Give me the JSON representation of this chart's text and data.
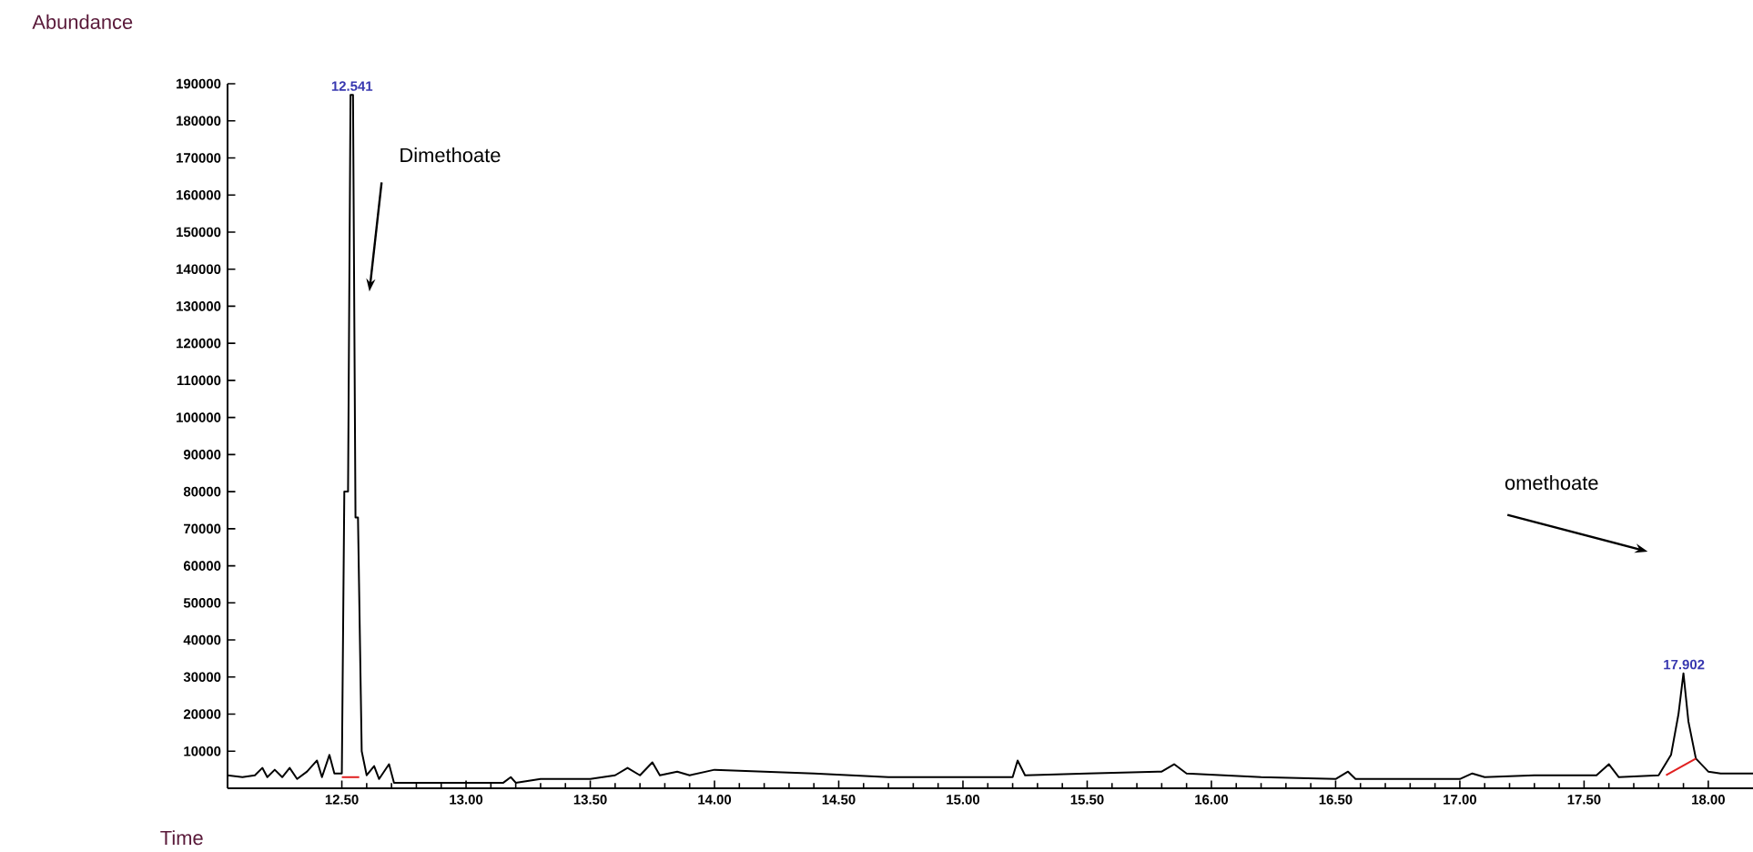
{
  "chart_data": {
    "type": "line",
    "xlabel": "Time",
    "ylabel": "Abundance",
    "marker": "none",
    "xlim": [
      12.04,
      18.18
    ],
    "ylim": [
      0,
      190000
    ],
    "xticks": [
      {
        "value": 12.5,
        "label": "12.50"
      },
      {
        "value": 13,
        "label": "13.00"
      },
      {
        "value": 13.5,
        "label": "13.50"
      },
      {
        "value": 14,
        "label": "14.00"
      },
      {
        "value": 14.5,
        "label": "14.50"
      },
      {
        "value": 15,
        "label": "15.00"
      },
      {
        "value": 15.5,
        "label": "15.50"
      },
      {
        "value": 16,
        "label": "16.00"
      },
      {
        "value": 16.5,
        "label": "16.50"
      },
      {
        "value": 17,
        "label": "17.00"
      },
      {
        "value": 17.5,
        "label": "17.50"
      },
      {
        "value": 18,
        "label": "18.00"
      }
    ],
    "yticks": [
      10000,
      20000,
      30000,
      40000,
      50000,
      60000,
      70000,
      80000,
      90000,
      100000,
      110000,
      120000,
      130000,
      140000,
      150000,
      160000,
      170000,
      180000,
      190000
    ],
    "series": [
      {
        "color": "#000000",
        "x": [
          12.04,
          12.1,
          12.15,
          12.18,
          12.2,
          12.23,
          12.26,
          12.29,
          12.32,
          12.36,
          12.4,
          12.42,
          12.45,
          12.47,
          12.5,
          12.51,
          12.525,
          12.535,
          12.545,
          12.555,
          12.565,
          12.58,
          12.6,
          12.63,
          12.65,
          12.69,
          12.71,
          13.0,
          13.15,
          13.18,
          13.2,
          13.3,
          13.5,
          13.6,
          13.65,
          13.7,
          13.75,
          13.78,
          13.85,
          13.9,
          14.0,
          14.2,
          14.4,
          14.7,
          15.0,
          15.2,
          15.22,
          15.25,
          15.5,
          15.8,
          15.85,
          15.9,
          16.2,
          16.5,
          16.55,
          16.58,
          17.0,
          17.05,
          17.1,
          17.3,
          17.55,
          17.6,
          17.64,
          17.8,
          17.85,
          17.88,
          17.9,
          17.92,
          17.95,
          18.0,
          18.05,
          18.18
        ],
        "values": [
          3500,
          3000,
          3500,
          5500,
          3000,
          5000,
          3000,
          5500,
          2500,
          4500,
          7500,
          3000,
          9000,
          4000,
          4000,
          80000,
          80000,
          187000,
          187000,
          73000,
          73000,
          10000,
          3500,
          6000,
          2500,
          6500,
          1500,
          1500,
          1500,
          3000,
          1500,
          2500,
          2500,
          3500,
          5500,
          3500,
          7000,
          3500,
          4500,
          3500,
          5000,
          4500,
          4000,
          3000,
          3000,
          3000,
          7500,
          3500,
          4000,
          4500,
          6500,
          4000,
          3000,
          2500,
          4500,
          2500,
          2500,
          4000,
          3000,
          3500,
          3500,
          6500,
          3000,
          3500,
          9000,
          20000,
          31000,
          18000,
          8000,
          4500,
          4000,
          4000
        ]
      },
      {
        "color": "#e02020",
        "x": [
          12.5,
          12.57
        ],
        "values": [
          3000,
          3000
        ]
      },
      {
        "color": "#e02020",
        "x": [
          17.83,
          17.95
        ],
        "values": [
          3500,
          8000
        ]
      }
    ],
    "annotations": [
      {
        "text": "12.541",
        "x": 12.541,
        "y": 187000
      },
      "Dimethoate",
      "omethoate",
      {
        "text": "17.902",
        "x": 17.902,
        "y": 31000
      }
    ]
  }
}
